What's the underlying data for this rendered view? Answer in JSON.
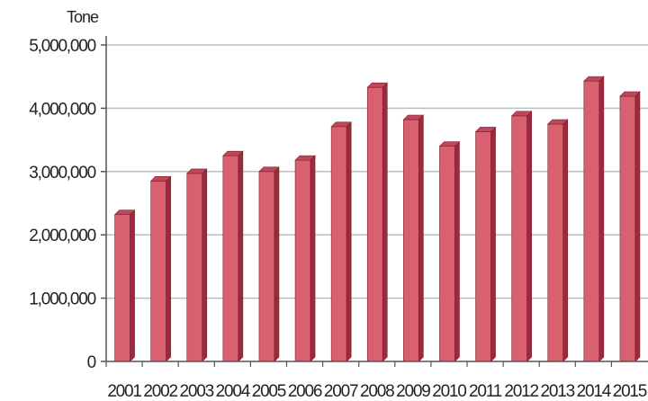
{
  "chart_data": {
    "type": "bar",
    "unit_label": "Tone",
    "categories": [
      "2001",
      "2002",
      "2003",
      "2004",
      "2005",
      "2006",
      "2007",
      "2008",
      "2009",
      "2010",
      "2011",
      "2012",
      "2013",
      "2014",
      "2015"
    ],
    "values": [
      2320000,
      2850000,
      2970000,
      3250000,
      3000000,
      3180000,
      3710000,
      4330000,
      3820000,
      3400000,
      3630000,
      3880000,
      3750000,
      4430000,
      4190000
    ],
    "ylim": [
      0,
      5000000
    ],
    "yticks": [
      "0",
      "1,000,000",
      "2,000,000",
      "3,000,000",
      "4,000,000",
      "5,000,000"
    ],
    "grid": true,
    "colors": {
      "bar_front": "#d9606f",
      "bar_side": "#9b2a3c",
      "bar_top": "#c0475a",
      "grid": "#bdbdbd",
      "axis": "#555555"
    }
  }
}
